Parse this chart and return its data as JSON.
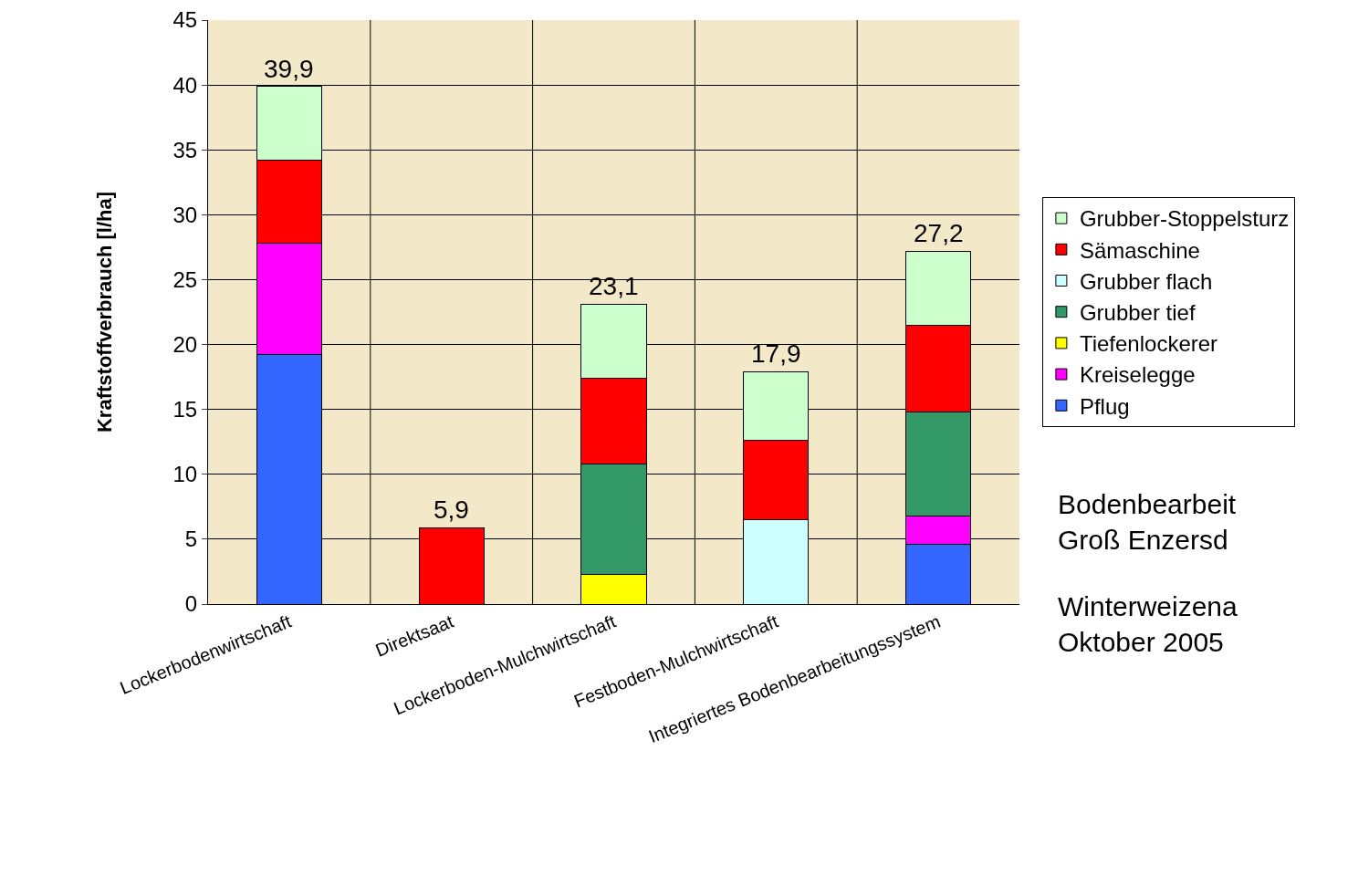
{
  "chart_data": {
    "type": "bar",
    "stacked": true,
    "ylabel": "Kraftstoffverbrauch [l/ha]",
    "categories": [
      "Lockerbodenwirtschaft",
      "Direktsaat",
      "Lockerboden-Mulchwirtschaft",
      "Festboden-Mulchwirtschaft",
      "Integriertes Bodenbearbeitungssystem"
    ],
    "series": [
      {
        "name": "Pflug",
        "color": "#3366ff",
        "values": [
          19.2,
          null,
          null,
          null,
          4.6
        ]
      },
      {
        "name": "Kreiselegge",
        "color": "#ff00ff",
        "values": [
          8.6,
          null,
          null,
          null,
          2.2
        ]
      },
      {
        "name": "Tiefenlockerer",
        "color": "#ffff00",
        "values": [
          null,
          null,
          2.3,
          null,
          null
        ]
      },
      {
        "name": "Grubber tief",
        "color": "#339966",
        "values": [
          null,
          null,
          8.5,
          null,
          8.0
        ]
      },
      {
        "name": "Grubber flach",
        "color": "#ccffff",
        "values": [
          null,
          null,
          null,
          6.5,
          null
        ]
      },
      {
        "name": "Sämaschine",
        "color": "#ff0000",
        "values": [
          6.4,
          5.9,
          6.6,
          6.1,
          6.7
        ]
      },
      {
        "name": "Grubber-Stoppelsturz",
        "color": "#ccffcc",
        "values": [
          5.7,
          null,
          5.7,
          5.3,
          5.7
        ]
      }
    ],
    "totals": [
      "39,9",
      "5,9",
      "23,1",
      "17,9",
      "27,2"
    ],
    "ylim": [
      0,
      45
    ],
    "yticks": [
      0,
      5,
      10,
      15,
      20,
      25,
      30,
      35,
      40,
      45
    ],
    "grid": true,
    "legend": "right",
    "annotations": [
      "Bodenbearbeit\nGroß Enzersd",
      "Winterweizena\nOktober 2005"
    ]
  }
}
